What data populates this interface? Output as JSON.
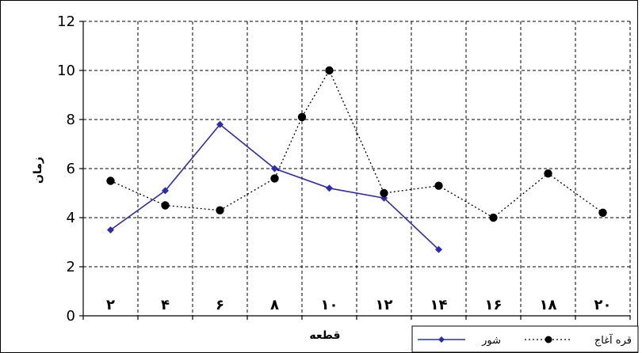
{
  "chart_data": {
    "type": "line",
    "title": "",
    "xlabel": "قطعه",
    "ylabel": "زمان",
    "ylim": [
      0,
      12
    ],
    "yticks": [
      "0",
      "2",
      "4",
      "6",
      "8",
      "10",
      "12"
    ],
    "grid": true,
    "legend_position": "bottom-right",
    "x_ticks": [
      {
        "label": "۲",
        "x": 2
      },
      {
        "label": "۴",
        "x": 4
      },
      {
        "label": "۶",
        "x": 6
      },
      {
        "label": "۸",
        "x": 8
      },
      {
        "label": "۱۰",
        "x": 10
      },
      {
        "label": "۱۲",
        "x": 12
      },
      {
        "label": "۱۴",
        "x": 14
      },
      {
        "label": "۱۶",
        "x": 16
      },
      {
        "label": "۱۸",
        "x": 18
      },
      {
        "label": "۲۰",
        "x": 20
      }
    ],
    "series": [
      {
        "name": "شور",
        "color": "#2b2bb8",
        "marker": "diamond",
        "line": "solid",
        "points": [
          {
            "x": 2,
            "y": 3.5
          },
          {
            "x": 4,
            "y": 5.1
          },
          {
            "x": 6,
            "y": 7.8
          },
          {
            "x": 8,
            "y": 6.0
          },
          {
            "x": 10,
            "y": 5.2
          },
          {
            "x": 12,
            "y": 4.8
          },
          {
            "x": 14,
            "y": 2.7
          }
        ]
      },
      {
        "name": "قره آغاج",
        "color": "#000000",
        "marker": "circle",
        "line": "dotted",
        "points": [
          {
            "x": 2,
            "y": 5.5
          },
          {
            "x": 4,
            "y": 4.5
          },
          {
            "x": 6,
            "y": 4.3
          },
          {
            "x": 8,
            "y": 5.6
          },
          {
            "x": 9,
            "y": 8.1
          },
          {
            "x": 10,
            "y": 10.0
          },
          {
            "x": 12,
            "y": 5.0
          },
          {
            "x": 14,
            "y": 5.3
          },
          {
            "x": 16,
            "y": 4.0
          },
          {
            "x": 18,
            "y": 5.8
          },
          {
            "x": 20,
            "y": 4.2
          }
        ]
      }
    ]
  }
}
